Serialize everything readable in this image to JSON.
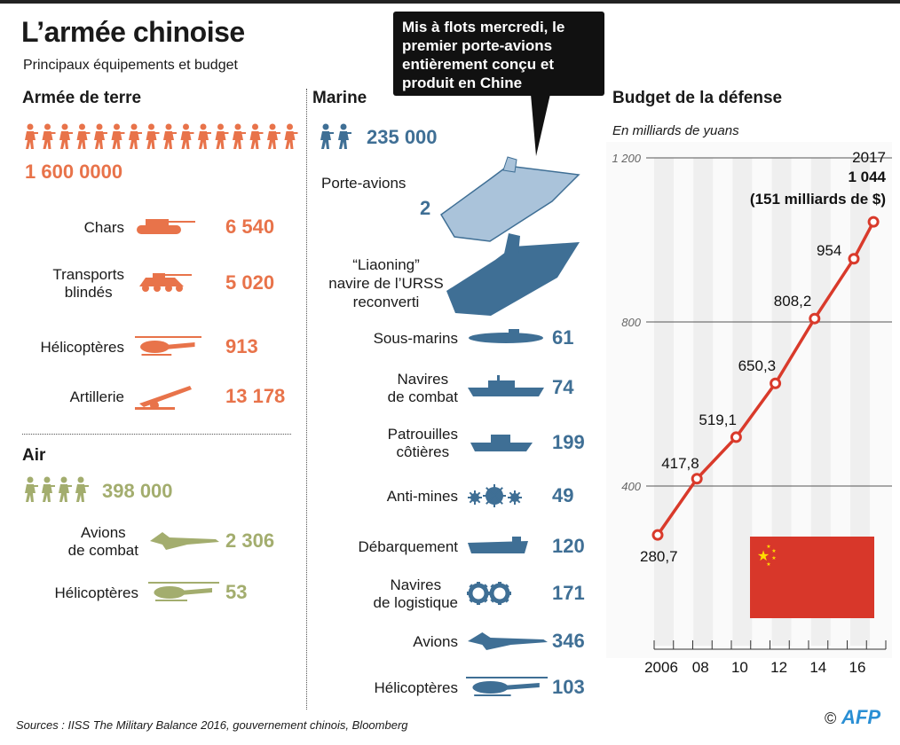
{
  "title": "L’armée chinoise",
  "subtitle": "Principaux équipements et budget",
  "callout": "Mis à flots mercredi, le premier porte-avions entièrement conçu et produit en Chine",
  "colors": {
    "army": "#e8734a",
    "air": "#a3ad6e",
    "navy": "#3f6f95",
    "line": "#d93a2b",
    "flag": "#d8372a"
  },
  "army": {
    "heading": "Armée de terre",
    "personnel": "1 600 0000",
    "items": [
      {
        "label": "Chars",
        "value": "6 540",
        "icon": "tank-icon"
      },
      {
        "label": "Transports\nblindés",
        "value": "5 020",
        "icon": "armored-vehicle-icon"
      },
      {
        "label": "Hélicoptères",
        "value": "913",
        "icon": "helicopter-icon"
      },
      {
        "label": "Artillerie",
        "value": "13 178",
        "icon": "artillery-icon"
      }
    ]
  },
  "air": {
    "heading": "Air",
    "personnel": "398 000",
    "items": [
      {
        "label": "Avions\nde combat",
        "value": "2 306",
        "icon": "fighter-jet-icon"
      },
      {
        "label": "Hélicoptères",
        "value": "53",
        "icon": "helicopter-icon"
      }
    ]
  },
  "navy": {
    "heading": "Marine",
    "personnel": "235 000",
    "carrier": {
      "label": "Porte-avions",
      "value": "2"
    },
    "liaoning": "“Liaoning”\nnavire de l’URSS\nreconverti",
    "items": [
      {
        "label": "Sous-marins",
        "value": "61",
        "icon": "submarine-icon"
      },
      {
        "label": "Navires\nde combat",
        "value": "74",
        "icon": "warship-icon"
      },
      {
        "label": "Patrouilles\ncôtières",
        "value": "199",
        "icon": "patrol-boat-icon"
      },
      {
        "label": "Anti-mines",
        "value": "49",
        "icon": "mine-icon"
      },
      {
        "label": "Débarquement",
        "value": "120",
        "icon": "landing-ship-icon"
      },
      {
        "label": "Navires\nde logistique",
        "value": "171",
        "icon": "gears-icon"
      },
      {
        "label": "Avions",
        "value": "346",
        "icon": "fighter-jet-icon"
      },
      {
        "label": "Hélicoptères",
        "value": "103",
        "icon": "helicopter-icon"
      }
    ]
  },
  "chart_data": {
    "type": "line",
    "title": "Budget de la défense",
    "subtitle": "En milliards de yuans",
    "x": [
      2006,
      2008,
      2010,
      2012,
      2014,
      2016,
      2017
    ],
    "values": [
      280.7,
      417.8,
      519.1,
      650.3,
      808.2,
      954,
      1044
    ],
    "labels": [
      "280,7",
      "417,8",
      "519,1",
      "650,3",
      "808,2",
      "954",
      "1 044"
    ],
    "annotation": {
      "year": "2017",
      "value": "1 044",
      "usd": "(151 milliards de $)"
    },
    "xticklabels": [
      "2006",
      "08",
      "10",
      "12",
      "14",
      "16"
    ],
    "xlim": [
      2006,
      2017
    ],
    "yticks": [
      400,
      800,
      1200
    ],
    "yticklabels": [
      "400",
      "800",
      "1 200"
    ],
    "ylim": [
      0,
      1200
    ],
    "grid": true
  },
  "sources": "Sources : IISS The Military Balance 2016, gouvernement chinois, Bloomberg",
  "credit": "©",
  "credit_logo": "AFP"
}
